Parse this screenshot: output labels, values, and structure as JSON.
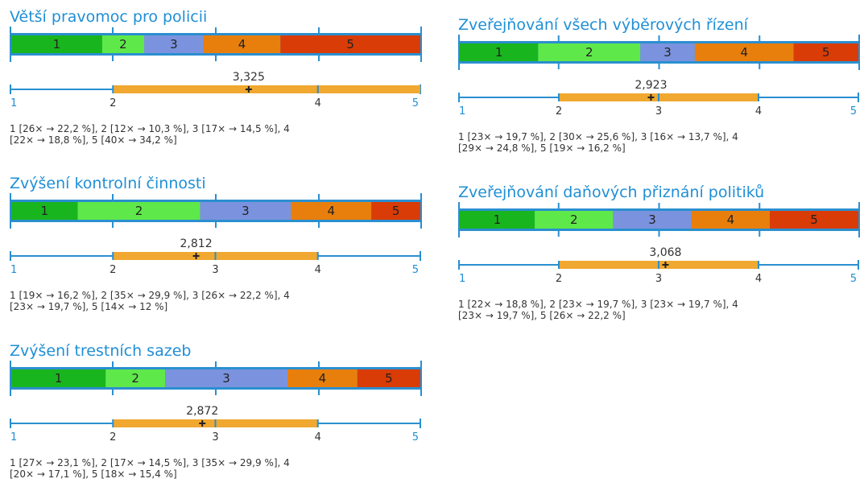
{
  "colors": {
    "title": "#1f8fd6",
    "axis": "#2a8fd0",
    "range": "#f0a830",
    "marker": "#222222",
    "text": "#333333",
    "tick": "#1f8fd6",
    "bins": [
      "#19b51e",
      "#5fe84a",
      "#7b93de",
      "#e87f0c",
      "#d93c06"
    ]
  },
  "chart_data": [
    {
      "type": "bar",
      "title": "Větší pravomoc pro policii",
      "categories": [
        "1",
        "2",
        "3",
        "4",
        "5"
      ],
      "values": [
        26,
        12,
        17,
        22,
        40
      ],
      "shares": [
        22.2,
        10.3,
        14.5,
        18.8,
        34.2
      ],
      "mean": 3.325,
      "mean_label": "3,325",
      "range": [
        2,
        5
      ],
      "scale": [
        1,
        5
      ],
      "ticks": [
        "1",
        "2",
        "4",
        "5"
      ],
      "tick_values": [
        1,
        2,
        4,
        5
      ],
      "note_lines": [
        "1 [26× → 22,2 %], 2 [12× → 10,3 %], 3 [17× → 14,5 %], 4",
        "[22× → 18,8 %], 5 [40× → 34,2 %]"
      ]
    },
    {
      "type": "bar",
      "title": "Zvýšení kontrolní činnosti",
      "categories": [
        "1",
        "2",
        "3",
        "4",
        "5"
      ],
      "values": [
        19,
        35,
        26,
        23,
        14
      ],
      "shares": [
        16.2,
        29.9,
        22.2,
        19.7,
        12
      ],
      "mean": 2.812,
      "mean_label": "2,812",
      "range": [
        2,
        4
      ],
      "scale": [
        1,
        5
      ],
      "ticks": [
        "1",
        "2",
        "3",
        "4",
        "5"
      ],
      "tick_values": [
        1,
        2,
        3,
        4,
        5
      ],
      "note_lines": [
        "1 [19× → 16,2 %], 2 [35× → 29,9 %], 3 [26× → 22,2 %], 4",
        "[23× → 19,7 %], 5 [14× → 12 %]"
      ]
    },
    {
      "type": "bar",
      "title": "Zvýšení trestních sazeb",
      "categories": [
        "1",
        "2",
        "3",
        "4",
        "5"
      ],
      "values": [
        27,
        17,
        35,
        20,
        18
      ],
      "shares": [
        23.1,
        14.5,
        29.9,
        17.1,
        15.4
      ],
      "mean": 2.872,
      "mean_label": "2,872",
      "range": [
        2,
        4
      ],
      "scale": [
        1,
        5
      ],
      "ticks": [
        "1",
        "2",
        "3",
        "4",
        "5"
      ],
      "tick_values": [
        1,
        2,
        3,
        4,
        5
      ],
      "note_lines": [
        "1 [27× → 23,1 %], 2 [17× → 14,5 %], 3 [35× → 29,9 %], 4",
        "[20× → 17,1 %], 5 [18× → 15,4 %]"
      ]
    },
    {
      "type": "bar",
      "title": "Zveřejňování všech výběrových řízení",
      "categories": [
        "1",
        "2",
        "3",
        "4",
        "5"
      ],
      "values": [
        23,
        30,
        16,
        29,
        19
      ],
      "shares": [
        19.7,
        25.6,
        13.7,
        24.8,
        16.2
      ],
      "mean": 2.923,
      "mean_label": "2,923",
      "range": [
        2,
        4
      ],
      "scale": [
        1,
        5
      ],
      "ticks": [
        "1",
        "2",
        "3",
        "4",
        "5"
      ],
      "tick_values": [
        1,
        2,
        3,
        4,
        5
      ],
      "note_lines": [
        "1 [23× → 19,7 %], 2 [30× → 25,6 %], 3 [16× → 13,7 %], 4",
        "[29× → 24,8 %], 5 [19× → 16,2 %]"
      ]
    },
    {
      "type": "bar",
      "title": "Zveřejňování daňových přiznání politiků",
      "categories": [
        "1",
        "2",
        "3",
        "4",
        "5"
      ],
      "values": [
        22,
        23,
        23,
        23,
        26
      ],
      "shares": [
        18.8,
        19.7,
        19.7,
        19.7,
        22.2
      ],
      "mean": 3.068,
      "mean_label": "3,068",
      "range": [
        2,
        4
      ],
      "scale": [
        1,
        5
      ],
      "ticks": [
        "1",
        "2",
        "3",
        "4",
        "5"
      ],
      "tick_values": [
        1,
        2,
        3,
        4,
        5
      ],
      "note_lines": [
        "1 [22× → 18,8 %], 2 [23× → 19,7 %], 3 [23× → 19,7 %], 4",
        "[23× → 19,7 %], 5 [26× → 22,2 %]"
      ]
    }
  ]
}
